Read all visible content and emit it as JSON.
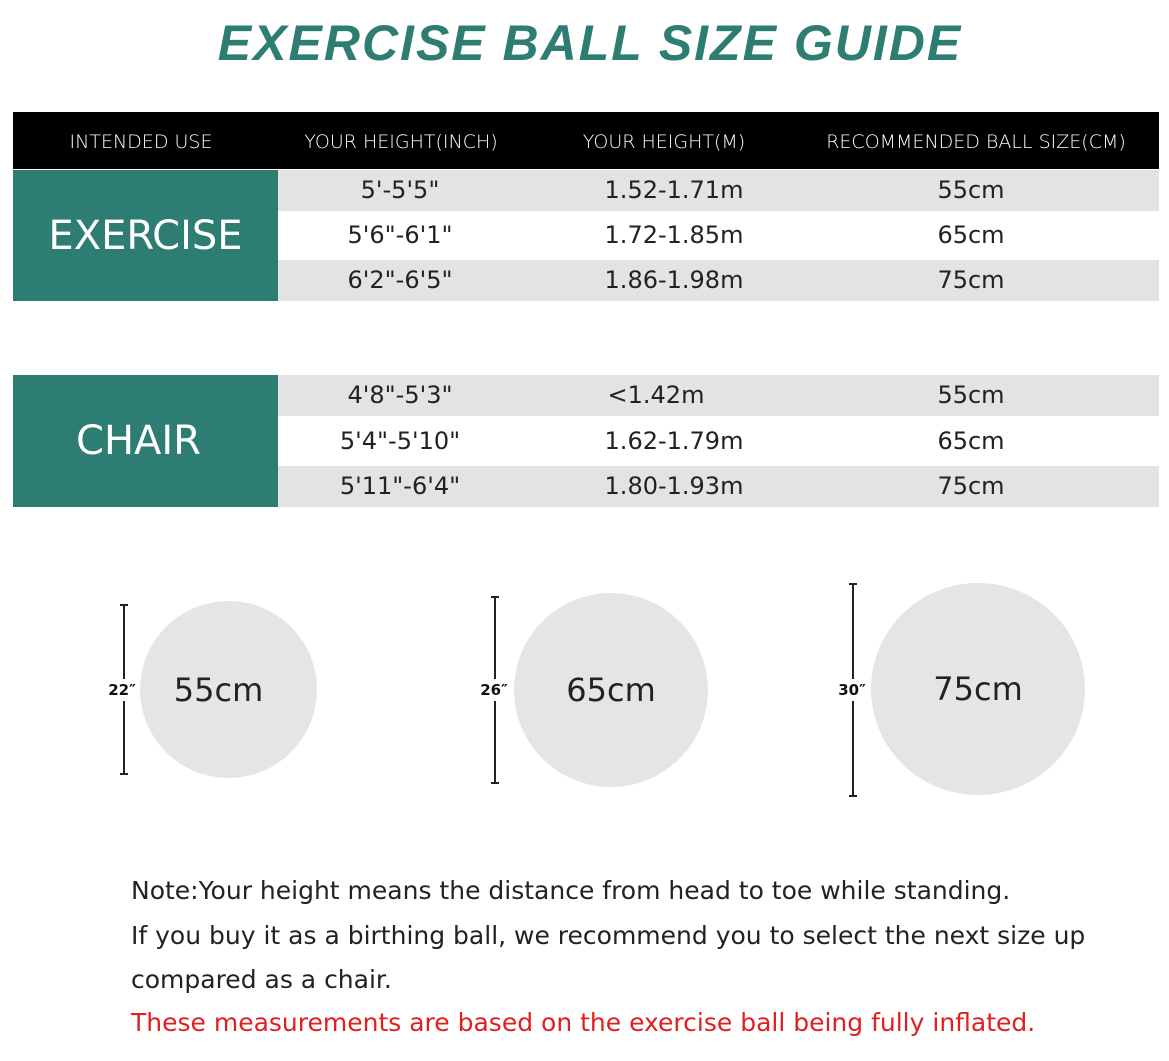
{
  "title": "EXERCISE BALL SIZE GUIDE",
  "colors": {
    "accent": "#2d7d72",
    "header_bg": "#000000",
    "row_alt": "#e3e3e3",
    "warning": "#e02020"
  },
  "table": {
    "headers": [
      "INTENDED USE",
      "YOUR HEIGHT(INCH)",
      "YOUR HEIGHT(M)",
      "RECOMMENDED BALL SIZE(CM)"
    ],
    "groups": [
      {
        "use": "EXERCISE",
        "rows": [
          {
            "inch": "5'-5'5\"",
            "m": "1.52-1.71m",
            "size": "55cm"
          },
          {
            "inch": "5'6\"-6'1\"",
            "m": "1.72-1.85m",
            "size": "65cm"
          },
          {
            "inch": "6'2\"-6'5\"",
            "m": "1.86-1.98m",
            "size": "75cm"
          }
        ]
      },
      {
        "use": "CHAIR",
        "rows": [
          {
            "inch": "4'8\"-5'3\"",
            "m": "<1.42m",
            "size": "55cm"
          },
          {
            "inch": "5'4\"-5'10\"",
            "m": "1.62-1.79m",
            "size": "65cm"
          },
          {
            "inch": "5'11\"-6'4\"",
            "m": "1.80-1.93m",
            "size": "75cm"
          }
        ]
      }
    ]
  },
  "balls": [
    {
      "label": "55cm",
      "height": "22″"
    },
    {
      "label": "65cm",
      "height": "26″"
    },
    {
      "label": "75cm",
      "height": "30″"
    }
  ],
  "notes": {
    "line1": "Note:Your height means the distance from head to toe while standing.",
    "line2": "If you buy it as a birthing ball, we recommend you to select the next size up",
    "line3": "compared as a chair.",
    "warning": "These measurements are based on the exercise ball being fully inflated."
  }
}
